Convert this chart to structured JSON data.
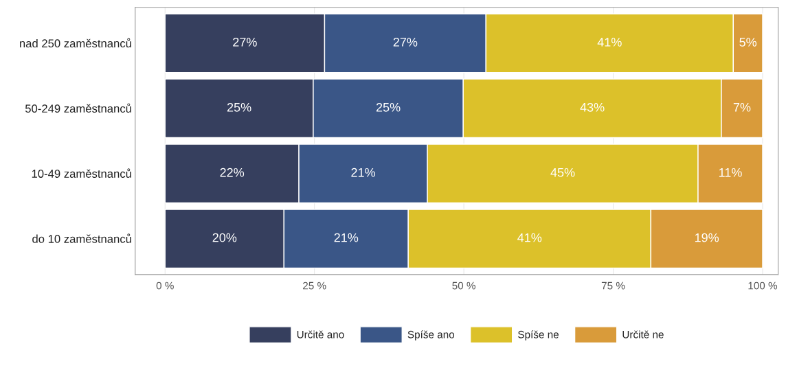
{
  "chart_data": {
    "type": "bar",
    "orientation": "horizontal",
    "stacked": true,
    "categories": [
      "nad 250 zaměstnanců",
      "50-249 zaměstnanců",
      "10-49 zaměstnanců",
      "do 10 zaměstnanců"
    ],
    "series": [
      {
        "name": "Určitě ano",
        "color": "#363f5e",
        "values": [
          26.7,
          24.8,
          22.4,
          19.9
        ],
        "value_labels": [
          "27%",
          "25%",
          "22%",
          "20%"
        ]
      },
      {
        "name": "Spíše ano",
        "color": "#3a5687",
        "values": [
          27.0,
          25.1,
          21.5,
          20.8
        ],
        "value_labels": [
          "27%",
          "25%",
          "21%",
          "21%"
        ]
      },
      {
        "name": "Spíše ne",
        "color": "#dcc12a",
        "values": [
          41.4,
          43.2,
          45.3,
          40.6
        ],
        "value_labels": [
          "41%",
          "43%",
          "45%",
          "41%"
        ]
      },
      {
        "name": "Určitě ne",
        "color": "#d99b3a",
        "values": [
          4.9,
          6.9,
          10.8,
          18.7
        ],
        "value_labels": [
          "5%",
          "7%",
          "11%",
          "19%"
        ]
      }
    ],
    "xlim": [
      -5,
      102.6
    ],
    "xticks": [
      {
        "value": 0,
        "label": "0 %"
      },
      {
        "value": 25,
        "label": "25 %"
      },
      {
        "value": 50,
        "label": "50 %"
      },
      {
        "value": 75,
        "label": "75 %"
      },
      {
        "value": 100,
        "label": "100 %"
      }
    ],
    "grid": "x",
    "legend": "bottom"
  }
}
